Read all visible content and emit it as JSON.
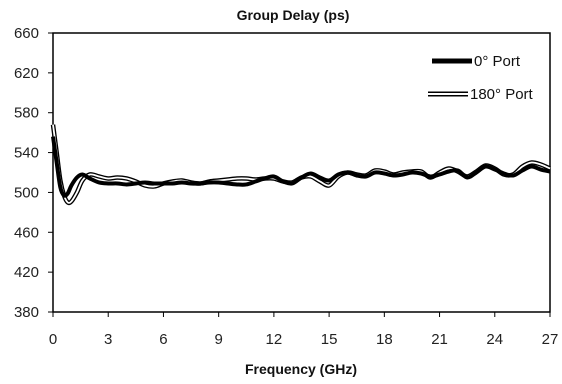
{
  "chart_data": {
    "type": "line",
    "title": "Group Delay (ps)",
    "xlabel": "Frequency (GHz)",
    "ylabel": "",
    "xlim": [
      0,
      27
    ],
    "ylim": [
      380,
      660
    ],
    "xticks": [
      0,
      3,
      6,
      9,
      12,
      15,
      18,
      21,
      24,
      27
    ],
    "yticks": [
      380,
      420,
      460,
      500,
      540,
      580,
      620,
      660
    ],
    "grid": false,
    "legend_position": "top-right",
    "series": [
      {
        "name": "0° Port",
        "style": "thick-solid",
        "color": "#000000",
        "x": [
          0,
          0.2,
          0.4,
          0.6,
          0.8,
          1.0,
          1.3,
          1.6,
          2.0,
          2.5,
          3.0,
          3.5,
          4.0,
          4.5,
          5.0,
          5.5,
          6.0,
          6.5,
          7.0,
          7.5,
          8.0,
          8.5,
          9.0,
          9.5,
          10.0,
          10.5,
          11.0,
          11.5,
          12.0,
          12.5,
          13.0,
          13.5,
          14.0,
          14.5,
          15.0,
          15.5,
          16.0,
          16.5,
          17.0,
          17.5,
          18.0,
          18.5,
          19.0,
          19.5,
          20.0,
          20.5,
          21.0,
          21.5,
          22.0,
          22.5,
          23.0,
          23.5,
          24.0,
          24.5,
          25.0,
          25.5,
          26.0,
          26.5,
          27.0
        ],
        "y": [
          556,
          530,
          505,
          497,
          499,
          507,
          515,
          518,
          514,
          510,
          509,
          509,
          508,
          509,
          510,
          509,
          509,
          509,
          510,
          509,
          509,
          510,
          510,
          509,
          508,
          508,
          511,
          514,
          516,
          511,
          509,
          515,
          519,
          515,
          512,
          518,
          520,
          517,
          516,
          520,
          519,
          517,
          518,
          520,
          519,
          516,
          518,
          521,
          522,
          515,
          520,
          526,
          523,
          519,
          517,
          522,
          526,
          523,
          521
        ]
      },
      {
        "name": "180° Port",
        "style": "double-line",
        "color": "#000000",
        "x": [
          0,
          0.2,
          0.4,
          0.6,
          0.8,
          1.0,
          1.3,
          1.6,
          2.0,
          2.5,
          3.0,
          3.5,
          4.0,
          4.5,
          5.0,
          5.5,
          6.0,
          6.5,
          7.0,
          7.5,
          8.0,
          8.5,
          9.0,
          9.5,
          10.0,
          10.5,
          11.0,
          11.5,
          12.0,
          12.5,
          13.0,
          13.5,
          14.0,
          14.5,
          15.0,
          15.5,
          16.0,
          16.5,
          17.0,
          17.5,
          18.0,
          18.5,
          19.0,
          19.5,
          20.0,
          20.5,
          21.0,
          21.5,
          22.0,
          22.5,
          23.0,
          23.5,
          24.0,
          24.5,
          25.0,
          25.5,
          26.0,
          26.5,
          27.0
        ],
        "y": [
          568,
          540,
          512,
          497,
          490,
          491,
          500,
          512,
          518,
          516,
          514,
          515,
          514,
          511,
          507,
          506,
          509,
          511,
          512,
          510,
          509,
          511,
          512,
          513,
          514,
          514,
          513,
          514,
          514,
          511,
          510,
          515,
          516,
          511,
          507,
          516,
          520,
          518,
          517,
          522,
          521,
          518,
          520,
          521,
          521,
          515,
          520,
          524,
          521,
          516,
          521,
          527,
          524,
          518,
          518,
          526,
          530,
          528,
          524
        ]
      }
    ]
  }
}
